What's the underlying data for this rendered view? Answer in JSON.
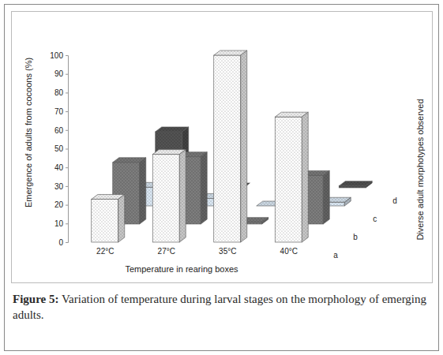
{
  "chart_data": {
    "type": "bar",
    "figure_label": "Figure 5:",
    "title": "Variation of temperature during larval stages on the morphology of emerging adults.",
    "x_label": "Temperature in rearing boxes",
    "y_label": "Emergence of adults from cocoons (%)",
    "z_label": "Diverse adult morphotypes observed",
    "categories": [
      "22°C",
      "27°C",
      "35°C",
      "40°C"
    ],
    "series": [
      {
        "name": "a",
        "color": "#ffffff",
        "values": [
          23,
          47,
          100,
          67
        ]
      },
      {
        "name": "b",
        "color": "#707070",
        "values": [
          33,
          36,
          1,
          26
        ]
      },
      {
        "name": "c",
        "color": "#dbe8f4",
        "values": [
          10,
          4,
          0,
          2
        ]
      },
      {
        "name": "d",
        "color": "#4a4a4a",
        "values": [
          30,
          0,
          0,
          1
        ]
      }
    ],
    "ylim": [
      0,
      100
    ],
    "yticks": [
      0,
      10,
      20,
      30,
      40,
      50,
      60,
      70,
      80,
      90,
      100
    ],
    "grid": false
  }
}
